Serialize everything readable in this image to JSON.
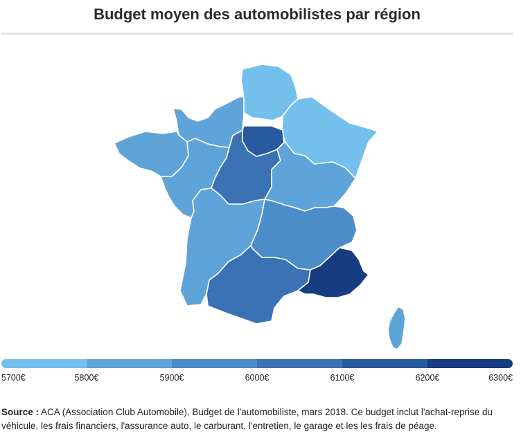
{
  "title": "Budget moyen des automobilistes par région",
  "legend": {
    "colors": [
      "#74c0ec",
      "#5fa4d8",
      "#4c8cc8",
      "#3b72b6",
      "#285a9f",
      "#173c82"
    ],
    "labels": [
      "5700€",
      "5800€",
      "5900€",
      "6000€",
      "6100€",
      "6200€",
      "6300€"
    ]
  },
  "regions": {
    "hauts_de_france": "#74c0ec",
    "grand_est": "#74c0ec",
    "normandie": "#5fa4d8",
    "bretagne": "#5fa4d8",
    "pays_de_la_loire": "#5fa4d8",
    "centre_val_de_loire": "#3b72b6",
    "ile_de_france": "#285a9f",
    "bourgogne_franche_comte": "#5fa4d8",
    "nouvelle_aquitaine": "#5fa4d8",
    "auvergne_rhone_alpes": "#4c8cc8",
    "occitanie": "#3b72b6",
    "paca": "#173c82",
    "corse": "#5fa4d8"
  },
  "source": {
    "label": "Source :",
    "text": "ACA (Association Club Automobile), Budget de l'automobiliste, mars 2018. Ce budget inclut l'achat-reprise du véhicule, les frais financiers, l'assurance auto, le carburant, l'entretien, le garage et les les frais de péage."
  }
}
